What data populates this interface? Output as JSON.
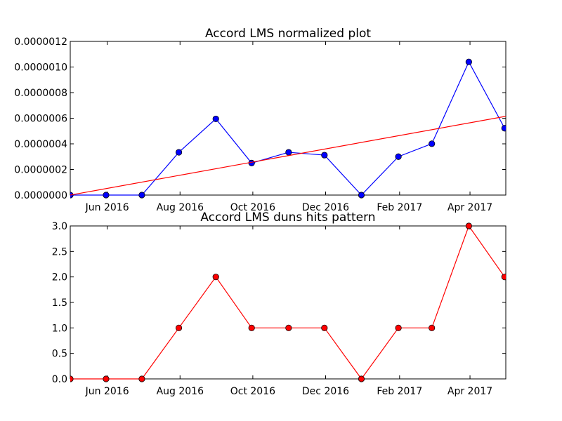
{
  "chart_data": [
    {
      "type": "line",
      "title": "Accord LMS normalized plot",
      "xlabel": "",
      "ylabel": "",
      "x_ticks": [
        "Jun 2016",
        "Aug 2016",
        "Oct 2016",
        "Dec 2016",
        "Feb 2017",
        "Apr 2017"
      ],
      "y_ticks": [
        "0.0000000",
        "0.0000002",
        "0.0000004",
        "0.0000006",
        "0.0000008",
        "0.0000010",
        "0.0000012"
      ],
      "ylim": [
        0,
        1.2e-06
      ],
      "xlim": [
        "2016-05-01",
        "2017-05-01"
      ],
      "grid": false,
      "series": [
        {
          "color": "#0000ff",
          "marker_fill": "#0000ff",
          "marker": "circle",
          "x": [
            "2016-05-01",
            "2016-05-31",
            "2016-06-30",
            "2016-07-31",
            "2016-08-31",
            "2016-09-30",
            "2016-10-31",
            "2016-11-30",
            "2016-12-31",
            "2017-01-31",
            "2017-02-28",
            "2017-03-31",
            "2017-04-30"
          ],
          "y": [
            0,
            0,
            0,
            3.34e-07,
            5.95e-07,
            2.5e-07,
            3.34e-07,
            3.12e-07,
            0,
            3e-07,
            4.01e-07,
            1.04e-06,
            5.22e-07
          ]
        },
        {
          "color": "#ff0000",
          "marker": "none",
          "x": [
            "2016-05-01",
            "2017-05-01"
          ],
          "y": [
            0,
            6.15e-07
          ]
        }
      ]
    },
    {
      "type": "line",
      "title": "Accord LMS duns hits pattern",
      "xlabel": "",
      "ylabel": "",
      "x_ticks": [
        "Jun 2016",
        "Aug 2016",
        "Oct 2016",
        "Dec 2016",
        "Feb 2017",
        "Apr 2017"
      ],
      "y_ticks": [
        "0.0",
        "0.5",
        "1.0",
        "1.5",
        "2.0",
        "2.5",
        "3.0"
      ],
      "ylim": [
        0,
        3
      ],
      "xlim": [
        "2016-05-01",
        "2017-05-01"
      ],
      "grid": false,
      "series": [
        {
          "color": "#ff0000",
          "marker_fill": "#ff0000",
          "marker": "circle",
          "x": [
            "2016-05-01",
            "2016-05-31",
            "2016-06-30",
            "2016-07-31",
            "2016-08-31",
            "2016-09-30",
            "2016-10-31",
            "2016-11-30",
            "2016-12-31",
            "2017-01-31",
            "2017-02-28",
            "2017-03-31",
            "2017-04-30"
          ],
          "y": [
            0,
            0,
            0,
            1,
            2,
            1,
            1,
            1,
            0,
            1,
            1,
            3,
            2
          ]
        }
      ]
    }
  ]
}
